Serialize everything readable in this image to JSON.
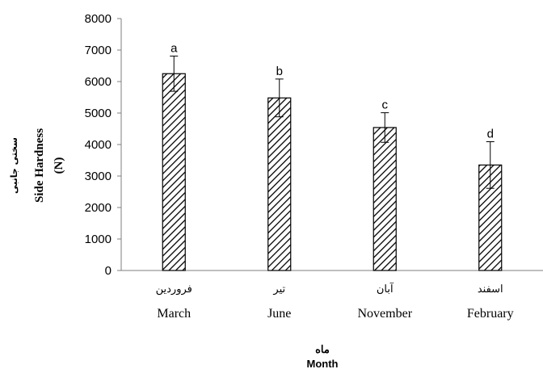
{
  "chart_data": {
    "type": "bar",
    "categories": [
      "March",
      "June",
      "November",
      "February"
    ],
    "categories_fa": [
      "فروردین",
      "تیر",
      "آبان",
      "اسفند"
    ],
    "values": [
      6250,
      5480,
      4540,
      3350
    ],
    "errors": [
      560,
      600,
      470,
      740
    ],
    "significance_letters": [
      "a",
      "b",
      "c",
      "d"
    ],
    "ylim": [
      0,
      8000
    ],
    "yticks": [
      "0",
      "1000",
      "2000",
      "3000",
      "4000",
      "5000",
      "6000",
      "7000",
      "8000"
    ],
    "ylabel_fa": "سختی جانبی",
    "ylabel": "Side Hardness",
    "ylabel_unit": "(N)",
    "xlabel_fa": "ماه",
    "xlabel": "Month",
    "grid": false,
    "bar_fill": "diagonal-hatch",
    "bar_color": "#000000"
  }
}
